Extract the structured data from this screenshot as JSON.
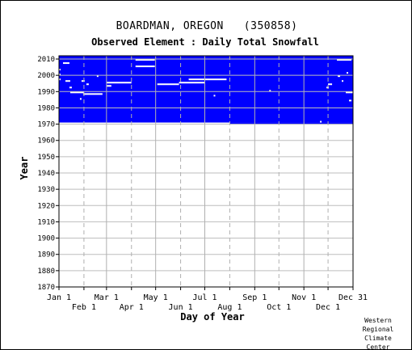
{
  "chart_data": {
    "type": "heatmap",
    "title": "BOARDMAN, OREGON   (350858)",
    "subtitle": "Observed Element : Daily Total Snowfall",
    "xlabel": "Day of Year",
    "ylabel": "Year",
    "xlim": [
      1,
      366
    ],
    "ylim": [
      1870,
      2012
    ],
    "x_ticks_row1": [
      {
        "day": 1,
        "label": "Jan 1"
      },
      {
        "day": 60,
        "label": "Mar 1"
      },
      {
        "day": 121,
        "label": "May 1"
      },
      {
        "day": 182,
        "label": "Jul 1"
      },
      {
        "day": 244,
        "label": "Sep 1"
      },
      {
        "day": 305,
        "label": "Nov 1"
      },
      {
        "day": 366,
        "label": "Dec 31"
      }
    ],
    "x_ticks_row2": [
      {
        "day": 32,
        "label": "Feb 1"
      },
      {
        "day": 91,
        "label": "Apr 1"
      },
      {
        "day": 152,
        "label": "Jun 1"
      },
      {
        "day": 213,
        "label": "Aug 1"
      },
      {
        "day": 274,
        "label": "Oct 1"
      },
      {
        "day": 335,
        "label": "Dec 1"
      }
    ],
    "y_ticks": [
      1870,
      1880,
      1890,
      1900,
      1910,
      1920,
      1930,
      1940,
      1950,
      1960,
      1970,
      1980,
      1990,
      2000,
      2010
    ],
    "data_color": "#0000ff",
    "record_coverage": {
      "start_year": 1970,
      "end_year": 2011,
      "start_day": 1,
      "end_day": 366,
      "first_year_start_day": 213
    },
    "missing_segments": [
      {
        "year": 2009,
        "start_day": 96,
        "end_day": 120
      },
      {
        "year": 2005,
        "start_day": 96,
        "end_day": 120
      },
      {
        "year": 1997,
        "start_day": 162,
        "end_day": 209
      },
      {
        "year": 1995,
        "start_day": 60,
        "end_day": 91
      },
      {
        "year": 1994,
        "start_day": 123,
        "end_day": 150
      },
      {
        "year": 1995,
        "start_day": 150,
        "end_day": 182
      },
      {
        "year": 1989,
        "start_day": 15,
        "end_day": 32
      },
      {
        "year": 1988,
        "start_day": 31,
        "end_day": 55
      },
      {
        "year": 1993,
        "start_day": 60,
        "end_day": 66
      },
      {
        "year": 1996,
        "start_day": 9,
        "end_day": 15
      },
      {
        "year": 1992,
        "start_day": 14,
        "end_day": 17
      },
      {
        "year": 1985,
        "start_day": 27,
        "end_day": 29
      },
      {
        "year": 1997,
        "start_day": 1,
        "end_day": 3
      },
      {
        "year": 2000,
        "start_day": 1,
        "end_day": 2
      },
      {
        "year": 2003,
        "start_day": 1,
        "end_day": 3
      },
      {
        "year": 2007,
        "start_day": 6,
        "end_day": 14
      },
      {
        "year": 1996,
        "start_day": 29,
        "end_day": 33
      },
      {
        "year": 1999,
        "start_day": 48,
        "end_day": 50
      },
      {
        "year": 1994,
        "start_day": 35,
        "end_day": 38
      },
      {
        "year": 1987,
        "start_day": 193,
        "end_day": 195
      },
      {
        "year": 1990,
        "start_day": 262,
        "end_day": 264
      },
      {
        "year": 2009,
        "start_day": 346,
        "end_day": 364
      },
      {
        "year": 1994,
        "start_day": 335,
        "end_day": 340
      },
      {
        "year": 1992,
        "start_day": 333,
        "end_day": 336
      },
      {
        "year": 1999,
        "start_day": 347,
        "end_day": 350
      },
      {
        "year": 1989,
        "start_day": 357,
        "end_day": 366
      },
      {
        "year": 1984,
        "start_day": 361,
        "end_day": 364
      },
      {
        "year": 1971,
        "start_day": 325,
        "end_day": 327
      },
      {
        "year": 2001,
        "start_day": 358,
        "end_day": 360
      },
      {
        "year": 1996,
        "start_day": 352,
        "end_day": 354
      }
    ],
    "grid": true
  },
  "credit": [
    "Western",
    "Regional",
    "Climate",
    "Center"
  ]
}
